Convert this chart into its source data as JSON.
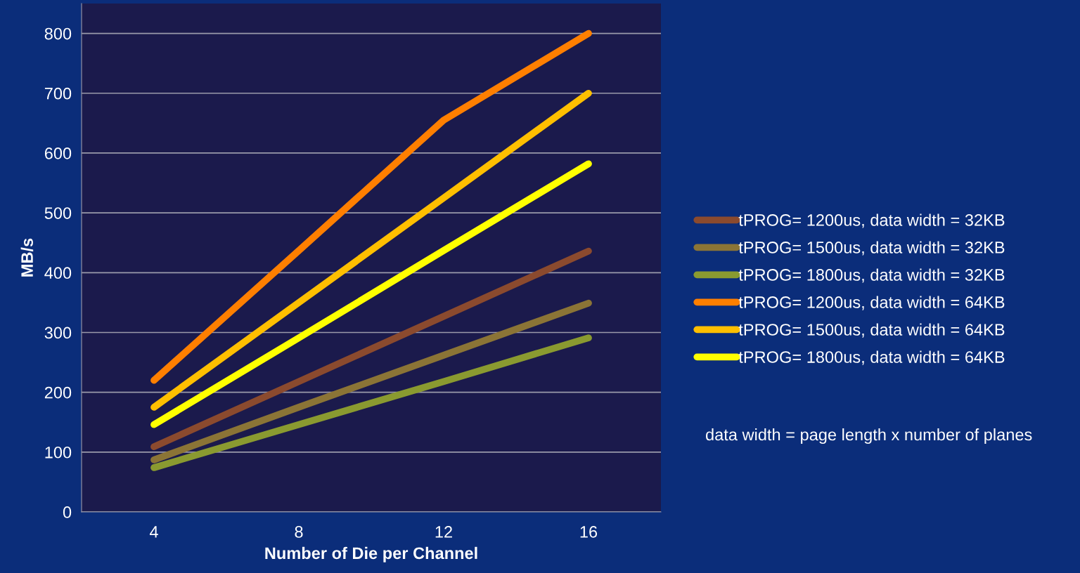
{
  "chart_data": {
    "type": "line",
    "xlabel": "Number of Die per Channel",
    "ylabel": "MB/s",
    "categories": [
      "4",
      "8",
      "12",
      "16"
    ],
    "series": [
      {
        "name": "tPROG= 1200us, data width = 32KB",
        "color": "#8b4a2e",
        "values": [
          109,
          218,
          327,
          436
        ]
      },
      {
        "name": "tPROG= 1500us, data width = 32KB",
        "color": "#8b7436",
        "values": [
          87,
          175,
          262,
          349
        ]
      },
      {
        "name": "tPROG= 1800us, data width = 32KB",
        "color": "#8a9a30",
        "values": [
          74,
          146,
          218,
          291
        ]
      },
      {
        "name": "tPROG= 1200us, data width = 64KB",
        "color": "#ff7f00",
        "values": [
          220,
          437,
          655,
          800
        ]
      },
      {
        "name": "tPROG= 1500us, data width = 64KB",
        "color": "#ffbf00",
        "values": [
          175,
          350,
          525,
          700
        ]
      },
      {
        "name": "tPROG= 1800us, data width = 64KB",
        "color": "#ffff00",
        "values": [
          146,
          291,
          437,
          582
        ]
      }
    ],
    "ylim": [
      0,
      850
    ],
    "yticks": [
      0,
      100,
      200,
      300,
      400,
      500,
      600,
      700,
      800
    ],
    "grid": "y",
    "legend": "right",
    "marker": "none",
    "line_style": "solid",
    "annotations": [
      "data width = page length x number of planes"
    ]
  }
}
